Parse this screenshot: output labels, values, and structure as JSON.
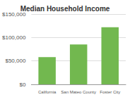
{
  "chart_data": {
    "type": "bar",
    "title": "Median Household Income",
    "categories": [
      "California",
      "San Mateo County",
      "Foster City"
    ],
    "values": [
      58000,
      85000,
      122000
    ],
    "color": "#72b84f",
    "ylim": [
      0,
      150000
    ],
    "yticks": [
      {
        "value": 0,
        "label": "$0"
      },
      {
        "value": 50000,
        "label": "$50,000"
      },
      {
        "value": 100000,
        "label": "$100,000"
      },
      {
        "value": 150000,
        "label": "$150,000"
      }
    ],
    "grid": true
  }
}
